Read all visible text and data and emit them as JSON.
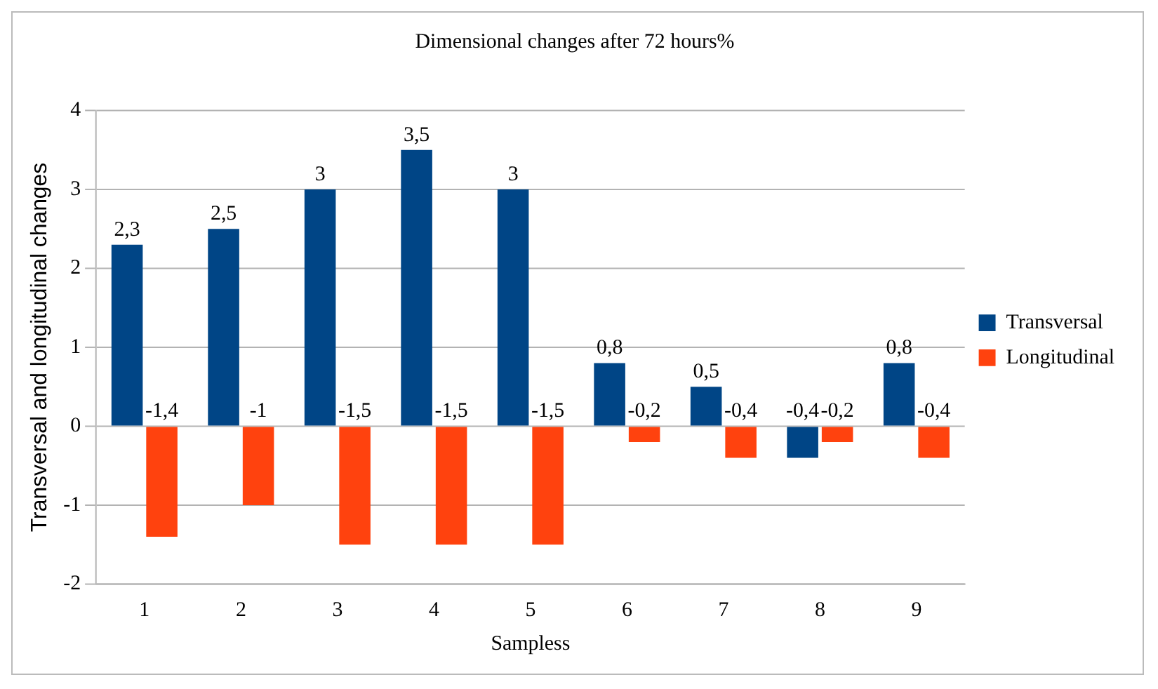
{
  "chart_data": {
    "type": "bar",
    "title": "Dimensional changes after 72 hours%",
    "xlabel": "Sampless",
    "ylabel": "Transversal and longitudinal changes",
    "categories": [
      "1",
      "2",
      "3",
      "4",
      "5",
      "6",
      "7",
      "8",
      "9"
    ],
    "series": [
      {
        "name": "Transversal",
        "color": "#004586",
        "values": [
          2.3,
          2.5,
          3,
          3.5,
          3,
          0.8,
          0.5,
          -0.4,
          0.8
        ],
        "value_labels": [
          "2,3",
          "2,5",
          "3",
          "3,5",
          "3",
          "0,8",
          "0,5",
          "-0,4",
          "0,8"
        ]
      },
      {
        "name": "Longitudinal",
        "color": "#ff420e",
        "values": [
          -1.4,
          -1,
          -1.5,
          -1.5,
          -1.5,
          -0.2,
          -0.4,
          -0.2,
          -0.4
        ],
        "value_labels": [
          "-1,4",
          "-1",
          "-1,5",
          "-1,5",
          "-1,5",
          "-0,2",
          "-0,4",
          "-0,2",
          "-0,4"
        ]
      }
    ],
    "ylim": [
      -2,
      4
    ],
    "yticks": [
      -2,
      -1,
      0,
      1,
      2,
      3,
      4
    ],
    "grid": "y",
    "legend": "right"
  }
}
